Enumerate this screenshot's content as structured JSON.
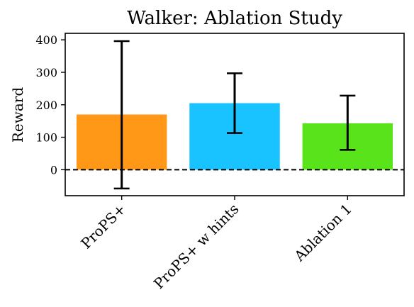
{
  "chart_data": {
    "type": "bar",
    "title": "Walker: Ablation Study",
    "xlabel": "",
    "ylabel": "Reward",
    "categories": [
      "ProPS+",
      "ProPS+ w hints",
      "Ablation 1"
    ],
    "values": [
      170,
      205,
      143
    ],
    "error_low": [
      -58,
      113,
      61
    ],
    "error_high": [
      396,
      297,
      228
    ],
    "colors": [
      "#ff9717",
      "#19c3ff",
      "#58e31a"
    ],
    "ylim": [
      -80,
      420
    ],
    "yticks": [
      0,
      100,
      200,
      300,
      400
    ],
    "baseline": 0,
    "baseline_style": "dashed",
    "grid": false,
    "legend": "none"
  }
}
